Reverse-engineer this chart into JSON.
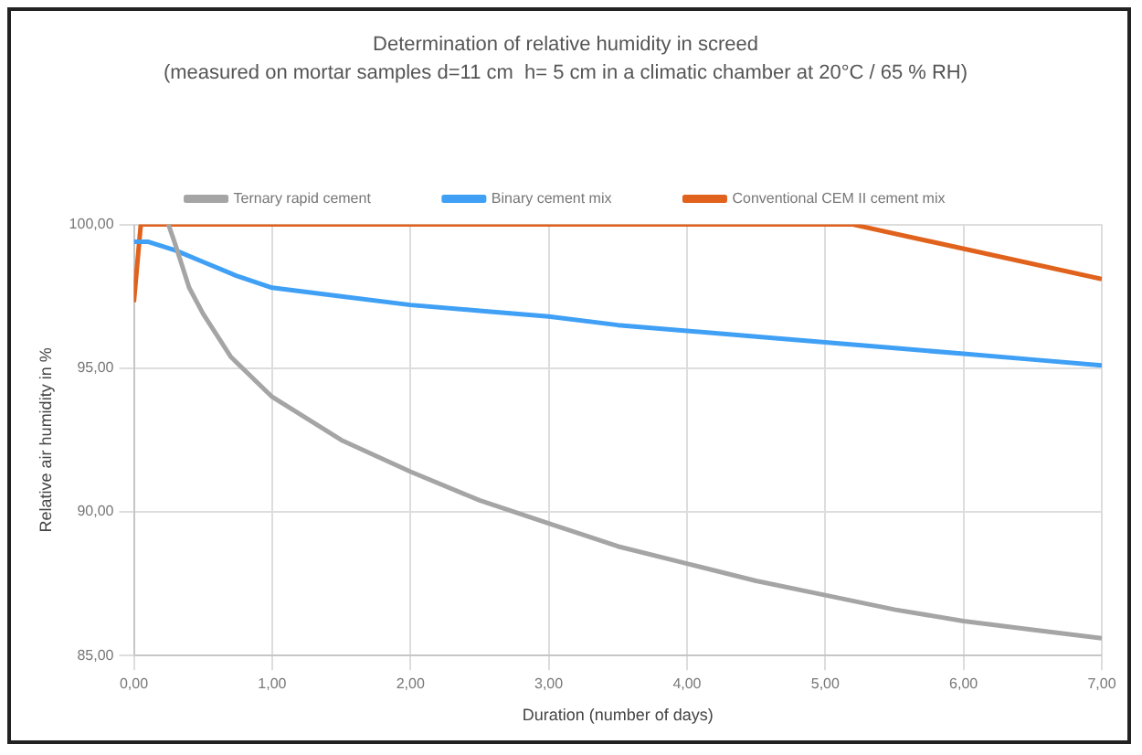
{
  "chart_data": {
    "type": "line",
    "title": "Determination of relative humidity in screed",
    "subtitle": "(measured on mortar samples d=11 cm  h= 5 cm in a climatic chamber at 20°C / 65 % RH)",
    "xlabel": "Duration (number of days)",
    "ylabel": "Relative air humidity in %",
    "xlim": [
      0,
      7
    ],
    "xticks": [
      {
        "value": 0,
        "label": "0,00"
      },
      {
        "value": 1,
        "label": "1,00"
      },
      {
        "value": 2,
        "label": "2,00"
      },
      {
        "value": 3,
        "label": "3,00"
      },
      {
        "value": 4,
        "label": "4,00"
      },
      {
        "value": 5,
        "label": "5,00"
      },
      {
        "value": 6,
        "label": "6,00"
      },
      {
        "value": 7,
        "label": "7,00"
      }
    ],
    "ylim": [
      85,
      100
    ],
    "yticks": [
      {
        "value": 85,
        "label": "85,00"
      },
      {
        "value": 90,
        "label": "90,00"
      },
      {
        "value": 95,
        "label": "95,00"
      },
      {
        "value": 100,
        "label": "100,00"
      }
    ],
    "grid": true,
    "legend": "top",
    "marker": "none",
    "line_style": "solid",
    "series": [
      {
        "name": "Ternary rapid cement",
        "color": "#a5a5a5",
        "x": [
          0.25,
          0.3,
          0.4,
          0.5,
          0.7,
          1,
          1.5,
          2,
          2.5,
          3,
          3.5,
          4,
          4.5,
          5,
          5.5,
          6,
          6.5,
          7
        ],
        "values": [
          100,
          99.3,
          97.8,
          96.9,
          95.4,
          94.0,
          92.5,
          91.4,
          90.4,
          89.6,
          88.8,
          88.2,
          87.6,
          87.1,
          86.6,
          86.2,
          85.9,
          85.6
        ]
      },
      {
        "name": "Binary cement mix",
        "color": "#3fa0f5",
        "x": [
          0,
          0.1,
          0.3,
          0.5,
          0.75,
          1,
          1.5,
          2,
          2.5,
          3,
          3.5,
          4,
          4.5,
          5,
          5.5,
          6,
          6.5,
          7
        ],
        "values": [
          99.4,
          99.4,
          99.1,
          98.7,
          98.2,
          97.8,
          97.5,
          97.2,
          97.0,
          96.8,
          96.5,
          96.3,
          96.1,
          95.9,
          95.7,
          95.5,
          95.3,
          95.1
        ]
      },
      {
        "name": "Conventional CEM II cement mix",
        "color": "#e0621c",
        "x": [
          0,
          0.05,
          5.2,
          7
        ],
        "values": [
          97.3,
          100,
          100,
          98.1
        ]
      }
    ]
  }
}
